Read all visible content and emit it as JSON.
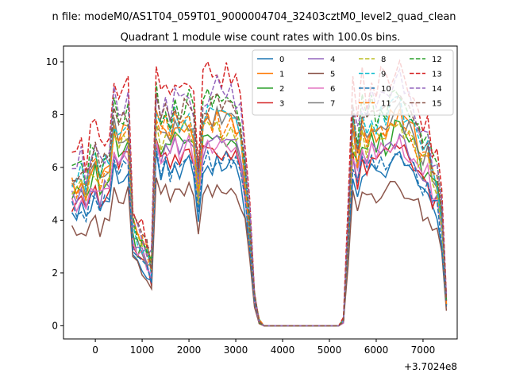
{
  "chart_data": {
    "type": "line",
    "suptitle": "n file: modeM0/AS1T04_059T01_9000004704_32403cztM0_level2_quad_clean",
    "title": "Quadrant 1 module wise count rates with 100.0s bins.",
    "xlabel": "",
    "ylabel": "",
    "x_offset_label": "+3.7024e8",
    "xlim": [
      -680,
      7730
    ],
    "ylim": [
      -0.5,
      10.6
    ],
    "x_ticks": [
      0,
      1000,
      2000,
      3000,
      4000,
      5000,
      6000,
      7000
    ],
    "x_tick_labels": [
      "0",
      "1000",
      "2000",
      "3000",
      "4000",
      "5000",
      "6000",
      "7000"
    ],
    "y_ticks": [
      0,
      2,
      4,
      6,
      8,
      10
    ],
    "y_tick_labels": [
      "0",
      "2",
      "4",
      "6",
      "8",
      "10"
    ],
    "grid": false,
    "legend_position": "top-right",
    "legend_columns": 4,
    "x": [
      -500,
      -400,
      -300,
      -200,
      -100,
      0,
      100,
      200,
      300,
      400,
      500,
      600,
      700,
      800,
      900,
      1000,
      1100,
      1200,
      1300,
      1400,
      1500,
      1600,
      1700,
      1800,
      1900,
      2000,
      2100,
      2200,
      2300,
      2400,
      2500,
      2600,
      2700,
      2800,
      2900,
      3000,
      3100,
      3200,
      3300,
      3400,
      3500,
      3600,
      3700,
      3800,
      3900,
      4000,
      4100,
      4200,
      4300,
      4400,
      4500,
      4600,
      4700,
      4800,
      4900,
      5000,
      5100,
      5200,
      5300,
      5400,
      5500,
      5600,
      5700,
      5800,
      5900,
      6000,
      6100,
      6200,
      6300,
      6400,
      6500,
      6600,
      6700,
      6800,
      6900,
      7000,
      7100,
      7200,
      7300,
      7400,
      7500
    ],
    "base_profile": [
      0.6,
      0.58,
      0.62,
      0.56,
      0.65,
      0.68,
      0.6,
      0.64,
      0.66,
      0.84,
      0.74,
      0.8,
      0.82,
      0.4,
      0.36,
      0.34,
      0.3,
      0.24,
      0.88,
      0.8,
      0.84,
      0.78,
      0.86,
      0.82,
      0.84,
      0.86,
      0.8,
      0.56,
      0.83,
      0.86,
      0.84,
      0.88,
      0.84,
      0.86,
      0.85,
      0.84,
      0.78,
      0.62,
      0.4,
      0.12,
      0.02,
      0,
      0,
      0,
      0,
      0,
      0,
      0,
      0,
      0,
      0,
      0,
      0,
      0,
      0,
      0,
      0,
      0,
      0.02,
      0.4,
      0.82,
      0.7,
      0.84,
      0.78,
      0.86,
      0.8,
      0.84,
      0.82,
      0.86,
      0.88,
      0.9,
      0.84,
      0.82,
      0.8,
      0.74,
      0.7,
      0.72,
      0.62,
      0.6,
      0.45,
      0.1
    ],
    "series": [
      {
        "name": "0",
        "color": "#1f77b4",
        "dash": "solid",
        "scale": 7.1,
        "jitter": 0.35,
        "seed": 1
      },
      {
        "name": "1",
        "color": "#ff7f0e",
        "dash": "solid",
        "scale": 9.2,
        "jitter": 0.45,
        "seed": 2
      },
      {
        "name": "2",
        "color": "#2ca02c",
        "dash": "solid",
        "scale": 8.4,
        "jitter": 0.45,
        "seed": 3
      },
      {
        "name": "3",
        "color": "#d62728",
        "dash": "solid",
        "scale": 7.8,
        "jitter": 0.4,
        "seed": 4
      },
      {
        "name": "4",
        "color": "#9467bd",
        "dash": "solid",
        "scale": 8.0,
        "jitter": 0.4,
        "seed": 5
      },
      {
        "name": "5",
        "color": "#8c564b",
        "dash": "solid",
        "scale": 6.1,
        "jitter": 0.3,
        "seed": 6
      },
      {
        "name": "6",
        "color": "#e377c2",
        "dash": "solid",
        "scale": 8.0,
        "jitter": 0.4,
        "seed": 7
      },
      {
        "name": "7",
        "color": "#7f7f7f",
        "dash": "solid",
        "scale": 9.0,
        "jitter": 0.45,
        "seed": 8
      },
      {
        "name": "8",
        "color": "#bcbd22",
        "dash": "dashed",
        "scale": 8.7,
        "jitter": 0.45,
        "seed": 9
      },
      {
        "name": "9",
        "color": "#17becf",
        "dash": "dashed",
        "scale": 9.4,
        "jitter": 0.45,
        "seed": 10
      },
      {
        "name": "10",
        "color": "#1f77b4",
        "dash": "dashed",
        "scale": 7.4,
        "jitter": 0.35,
        "seed": 11
      },
      {
        "name": "11",
        "color": "#ff7f0e",
        "dash": "dashed",
        "scale": 9.0,
        "jitter": 0.45,
        "seed": 12
      },
      {
        "name": "12",
        "color": "#2ca02c",
        "dash": "dashed",
        "scale": 10.0,
        "jitter": 0.45,
        "seed": 13
      },
      {
        "name": "13",
        "color": "#d62728",
        "dash": "dashed",
        "scale": 11.1,
        "jitter": 0.5,
        "seed": 14
      },
      {
        "name": "14",
        "color": "#9467bd",
        "dash": "dashed",
        "scale": 10.3,
        "jitter": 0.45,
        "seed": 15
      },
      {
        "name": "15",
        "color": "#8c564b",
        "dash": "dashed",
        "scale": 9.8,
        "jitter": 0.45,
        "seed": 16
      }
    ]
  }
}
